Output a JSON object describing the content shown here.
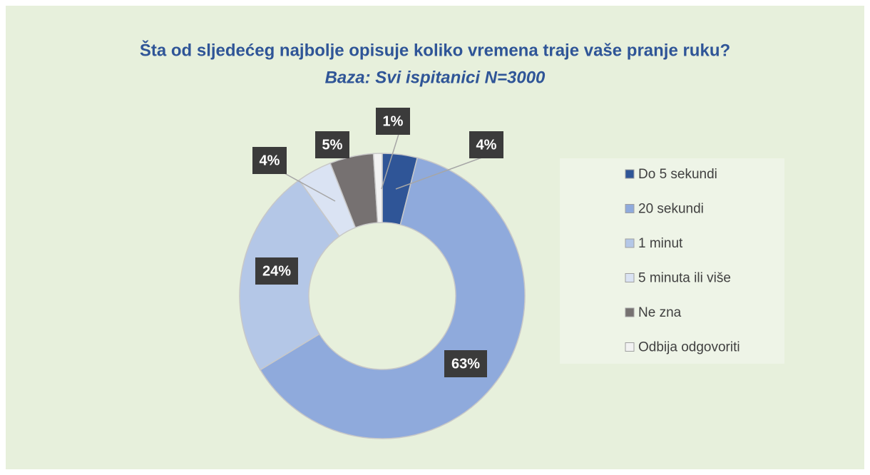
{
  "chart_data": {
    "type": "donut",
    "title": "Šta od sljedećeg najbolje opisuje koliko vremena traje vaše pranje ruku?",
    "subtitle": "Baza: Svi ispitanici N=3000",
    "categories": [
      "Do 5 sekundi",
      "20 sekundi",
      "1 minut",
      "5 minuta ili više",
      "Ne zna",
      "Odbija odgovoriti"
    ],
    "values": [
      4,
      63,
      24,
      4,
      5,
      1
    ],
    "value_labels": [
      "4%",
      "63%",
      "24%",
      "4%",
      "5%",
      "1%"
    ],
    "colors": [
      "#2f5597",
      "#8faadc",
      "#b4c7e7",
      "#dae3f3",
      "#767171",
      "#f2f2f2"
    ],
    "legend": "right"
  }
}
